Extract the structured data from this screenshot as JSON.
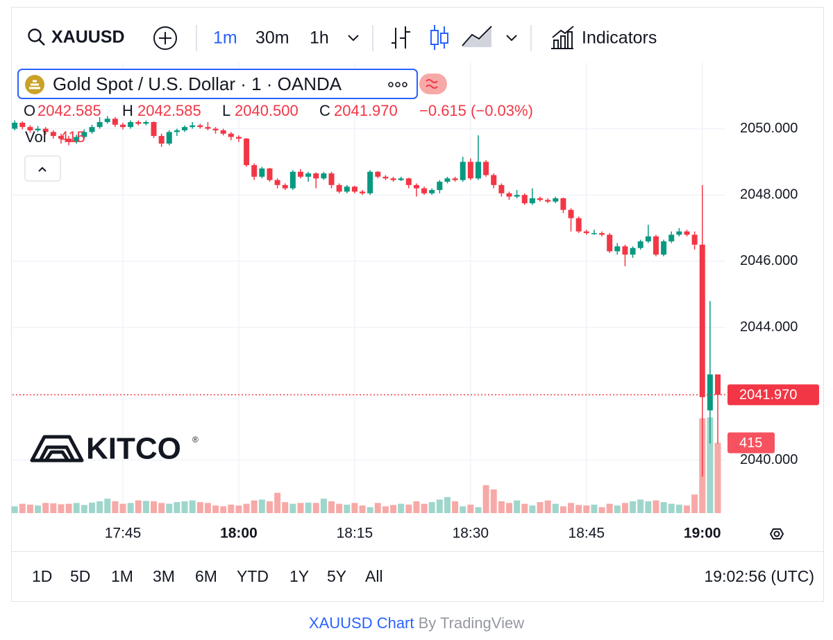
{
  "toolbar": {
    "symbol": "XAUUSD",
    "intervals": [
      "1m",
      "30m",
      "1h"
    ],
    "indicators": "Indicators"
  },
  "legend": {
    "title": "Gold Spot / U.S. Dollar · 1 · OANDA",
    "o_label": "O",
    "open": 2042.585,
    "h_label": "H",
    "high": 2042.585,
    "l_label": "L",
    "low": {
      "value": 2040.5,
      "label": "2040.500"
    },
    "c_label": "C",
    "change": "−0.615 (−0.03%)"
  },
  "logo": {
    "text": "KITCO",
    "mark": "®"
  },
  "chart_data": {
    "type": "candlestick",
    "x": [
      "17:31",
      "17:32",
      "17:33",
      "17:34",
      "17:35",
      "17:36",
      "17:37",
      "17:38",
      "17:39",
      "17:40",
      "17:41",
      "17:42",
      "17:43",
      "17:44",
      "17:45",
      "17:46",
      "17:47",
      "17:48",
      "17:49",
      "17:50",
      "17:51",
      "17:52",
      "17:53",
      "17:54",
      "17:55",
      "17:56",
      "17:57",
      "17:58",
      "17:59",
      "18:00",
      "18:01",
      "18:02",
      "18:03",
      "18:04",
      "18:05",
      "18:06",
      "18:07",
      "18:08",
      "18:09",
      "18:10",
      "18:11",
      "18:12",
      "18:13",
      "18:14",
      "18:15",
      "18:16",
      "18:17",
      "18:18",
      "18:19",
      "18:20",
      "18:21",
      "18:22",
      "18:23",
      "18:24",
      "18:25",
      "18:26",
      "18:27",
      "18:28",
      "18:29",
      "18:30",
      "18:31",
      "18:32",
      "18:33",
      "18:34",
      "18:35",
      "18:36",
      "18:37",
      "18:38",
      "18:39",
      "18:40",
      "18:41",
      "18:42",
      "18:43",
      "18:44",
      "18:45",
      "18:46",
      "18:47",
      "18:48",
      "18:49",
      "18:50",
      "18:51",
      "18:52",
      "18:53",
      "18:54",
      "18:55",
      "18:56",
      "18:57",
      "18:58",
      "18:59",
      "19:00",
      "19:01",
      "19:02"
    ],
    "xticks": [
      "17:45",
      "18:00",
      "18:15",
      "18:30",
      "18:45",
      "19:00"
    ],
    "ylim": [
      2038.4,
      2052.0
    ],
    "yticks": [
      {
        "value": 2040,
        "label": "2040.000"
      },
      {
        "value": 2044,
        "label": "2044.000"
      },
      {
        "value": 2046,
        "label": "2046.000"
      },
      {
        "value": 2048,
        "label": "2048.000"
      },
      {
        "value": 2050,
        "label": "2050.000"
      }
    ],
    "grid": true,
    "last_price": {
      "value": 2041.97,
      "label": "2041.970"
    },
    "series": [
      {
        "up_color": "#089981",
        "down_color": "#f23645",
        "values": [
          [
            2050.0,
            2050.25,
            2049.95,
            2050.18
          ],
          [
            2050.18,
            2050.22,
            2049.98,
            2050.05
          ],
          [
            2050.05,
            2050.1,
            2049.88,
            2049.95
          ],
          [
            2049.95,
            2050.08,
            2049.9,
            2050.0
          ],
          [
            2050.0,
            2050.05,
            2049.82,
            2049.9
          ],
          [
            2049.9,
            2049.95,
            2049.7,
            2049.78
          ],
          [
            2049.78,
            2049.85,
            2049.55,
            2049.7
          ],
          [
            2049.7,
            2049.78,
            2049.5,
            2049.6
          ],
          [
            2049.6,
            2049.82,
            2049.55,
            2049.75
          ],
          [
            2049.75,
            2049.98,
            2049.7,
            2049.9
          ],
          [
            2049.9,
            2050.12,
            2049.85,
            2050.05
          ],
          [
            2050.05,
            2050.35,
            2050.0,
            2050.2
          ],
          [
            2050.2,
            2050.38,
            2050.15,
            2050.3
          ],
          [
            2050.3,
            2050.35,
            2050.05,
            2050.12
          ],
          [
            2050.12,
            2050.18,
            2049.98,
            2050.05
          ],
          [
            2050.05,
            2050.25,
            2050.0,
            2050.2
          ],
          [
            2050.2,
            2050.25,
            2050.1,
            2050.15
          ],
          [
            2050.15,
            2050.25,
            2050.1,
            2050.2
          ],
          [
            2050.2,
            2050.22,
            2049.72,
            2049.78
          ],
          [
            2049.78,
            2049.85,
            2049.45,
            2049.55
          ],
          [
            2049.55,
            2049.95,
            2049.5,
            2049.9
          ],
          [
            2049.9,
            2050.0,
            2049.78,
            2049.95
          ],
          [
            2049.95,
            2050.1,
            2049.9,
            2050.05
          ],
          [
            2050.05,
            2050.2,
            2050.0,
            2050.1
          ],
          [
            2050.1,
            2050.15,
            2050.0,
            2050.05
          ],
          [
            2050.05,
            2050.2,
            2049.95,
            2050.0
          ],
          [
            2050.0,
            2050.05,
            2049.85,
            2049.95
          ],
          [
            2049.95,
            2050.0,
            2049.8,
            2049.85
          ],
          [
            2049.85,
            2049.9,
            2049.65,
            2049.75
          ],
          [
            2049.75,
            2049.8,
            2049.6,
            2049.7
          ],
          [
            2049.7,
            2049.72,
            2048.85,
            2048.9
          ],
          [
            2048.9,
            2048.95,
            2048.45,
            2048.55
          ],
          [
            2048.55,
            2048.85,
            2048.5,
            2048.8
          ],
          [
            2048.8,
            2048.82,
            2048.4,
            2048.45
          ],
          [
            2048.45,
            2048.5,
            2048.2,
            2048.3
          ],
          [
            2048.3,
            2048.35,
            2048.15,
            2048.2
          ],
          [
            2048.2,
            2048.75,
            2048.15,
            2048.7
          ],
          [
            2048.7,
            2048.78,
            2048.5,
            2048.55
          ],
          [
            2048.55,
            2048.7,
            2048.4,
            2048.65
          ],
          [
            2048.65,
            2048.68,
            2048.2,
            2048.5
          ],
          [
            2048.5,
            2048.7,
            2048.45,
            2048.65
          ],
          [
            2048.65,
            2048.7,
            2048.2,
            2048.3
          ],
          [
            2048.3,
            2048.35,
            2048.05,
            2048.1
          ],
          [
            2048.1,
            2048.3,
            2048.05,
            2048.25
          ],
          [
            2048.25,
            2048.28,
            2048.05,
            2048.1
          ],
          [
            2048.1,
            2048.15,
            2048.0,
            2048.05
          ],
          [
            2048.05,
            2048.75,
            2048.0,
            2048.7
          ],
          [
            2048.7,
            2048.72,
            2048.5,
            2048.55
          ],
          [
            2048.55,
            2048.6,
            2048.45,
            2048.5
          ],
          [
            2048.5,
            2048.55,
            2048.4,
            2048.45
          ],
          [
            2048.45,
            2048.55,
            2048.42,
            2048.5
          ],
          [
            2048.5,
            2048.52,
            2048.2,
            2048.3
          ],
          [
            2048.3,
            2048.35,
            2047.95,
            2048.2
          ],
          [
            2048.2,
            2048.25,
            2048.0,
            2048.05
          ],
          [
            2048.05,
            2048.2,
            2048.0,
            2048.15
          ],
          [
            2048.15,
            2048.45,
            2048.05,
            2048.4
          ],
          [
            2048.4,
            2048.55,
            2048.35,
            2048.5
          ],
          [
            2048.5,
            2048.55,
            2048.4,
            2048.45
          ],
          [
            2048.45,
            2049.15,
            2048.4,
            2049.0
          ],
          [
            2049.0,
            2049.1,
            2048.45,
            2048.5
          ],
          [
            2048.5,
            2049.8,
            2048.45,
            2049.0
          ],
          [
            2049.0,
            2049.05,
            2048.55,
            2048.6
          ],
          [
            2048.6,
            2048.65,
            2048.2,
            2048.3
          ],
          [
            2048.3,
            2048.35,
            2047.95,
            2048.05
          ],
          [
            2048.05,
            2048.1,
            2047.85,
            2047.95
          ],
          [
            2047.95,
            2048.15,
            2047.9,
            2048.0
          ],
          [
            2048.0,
            2048.05,
            2047.7,
            2047.75
          ],
          [
            2047.75,
            2048.2,
            2047.7,
            2047.9
          ],
          [
            2047.9,
            2047.95,
            2047.8,
            2047.85
          ],
          [
            2047.85,
            2047.9,
            2047.75,
            2047.8
          ],
          [
            2047.8,
            2047.95,
            2047.75,
            2047.9
          ],
          [
            2047.9,
            2047.92,
            2047.45,
            2047.55
          ],
          [
            2047.55,
            2047.6,
            2046.9,
            2047.3
          ],
          [
            2047.3,
            2047.35,
            2046.85,
            2046.9
          ],
          [
            2046.9,
            2046.95,
            2046.8,
            2046.85
          ],
          [
            2046.85,
            2046.95,
            2046.8,
            2046.85
          ],
          [
            2046.85,
            2046.9,
            2046.75,
            2046.8
          ],
          [
            2046.8,
            2046.85,
            2046.25,
            2046.3
          ],
          [
            2046.3,
            2046.55,
            2046.2,
            2046.45
          ],
          [
            2046.45,
            2046.5,
            2045.85,
            2046.2
          ],
          [
            2046.2,
            2046.45,
            2046.1,
            2046.4
          ],
          [
            2046.4,
            2046.65,
            2046.35,
            2046.6
          ],
          [
            2046.6,
            2047.1,
            2046.55,
            2046.75
          ],
          [
            2046.75,
            2046.8,
            2046.15,
            2046.2
          ],
          [
            2046.2,
            2046.65,
            2046.15,
            2046.6
          ],
          [
            2046.6,
            2046.9,
            2046.55,
            2046.8
          ],
          [
            2046.8,
            2047.0,
            2046.75,
            2046.9
          ],
          [
            2046.9,
            2046.95,
            2046.75,
            2046.8
          ],
          [
            2046.8,
            2046.9,
            2046.35,
            2046.5
          ],
          [
            2046.5,
            2048.3,
            2039.5,
            2041.9
          ],
          [
            2041.5,
            2044.8,
            2040.5,
            2042.585
          ],
          [
            2042.585,
            2042.585,
            2040.5,
            2041.97
          ]
        ]
      },
      {
        "name": "Vol",
        "axis": "volume",
        "up_color": "#9fd6cc",
        "down_color": "#f7a9a7",
        "label_color": "#f7525f",
        "values": [
          40,
          55,
          50,
          45,
          60,
          58,
          52,
          55,
          60,
          48,
          62,
          70,
          85,
          70,
          55,
          60,
          75,
          72,
          70,
          60,
          55,
          65,
          70,
          75,
          65,
          60,
          45,
          40,
          50,
          45,
          55,
          75,
          80,
          70,
          120,
          65,
          55,
          60,
          62,
          60,
          85,
          70,
          55,
          50,
          60,
          45,
          35,
          60,
          40,
          48,
          55,
          50,
          70,
          55,
          65,
          80,
          95,
          70,
          40,
          50,
          35,
          165,
          140,
          70,
          60,
          75,
          55,
          45,
          65,
          75,
          55,
          40,
          60,
          48,
          45,
          50,
          35,
          55,
          45,
          60,
          70,
          80,
          70,
          75,
          65,
          55,
          50,
          45,
          110,
          560,
          565,
          415
        ]
      }
    ]
  },
  "range_buttons": [
    "1D",
    "5D",
    "1M",
    "3M",
    "6M",
    "YTD",
    "1Y",
    "5Y",
    "All"
  ],
  "clock": "19:02:56 (UTC)",
  "footer": {
    "link": "XAUUSD Chart",
    "by": "By TradingView"
  }
}
